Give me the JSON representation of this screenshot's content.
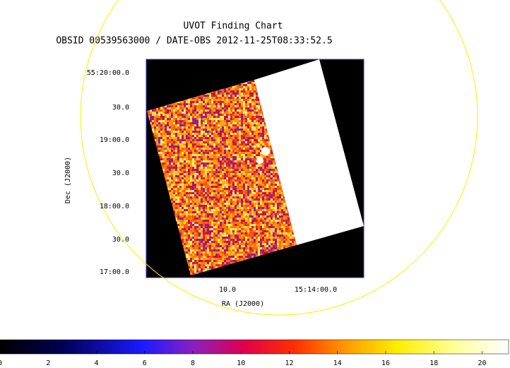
{
  "chart_data": {
    "type": "image",
    "title": "UVOT Finding Chart",
    "subtitle": "OBSID 00539563000 / DATE-OBS 2012-11-25T08:33:52.5",
    "xlabel": "RA (J2000)",
    "ylabel": "Dec (J2000)",
    "x_tick_labels": [
      "10.0",
      "15:14:00.0"
    ],
    "y_tick_labels": [
      "55:20:00.0",
      "30.0",
      "19:00.0",
      "30.0",
      "18:00.0",
      "30.0",
      "17:00.0"
    ],
    "colorbar": {
      "clim": [
        0,
        21.1
      ],
      "ticks": [
        0,
        2,
        4,
        6,
        8,
        10,
        12,
        14,
        16,
        18,
        20
      ]
    }
  }
}
